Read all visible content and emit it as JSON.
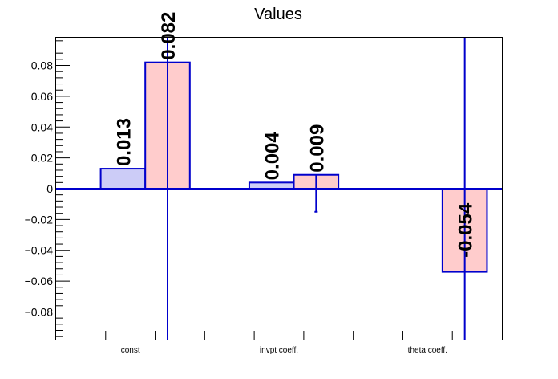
{
  "chart_data": {
    "type": "bar",
    "title": "Values",
    "categories": [
      "const",
      "invpt coeff.",
      "theta coeff."
    ],
    "ylim": [
      -0.098,
      0.098
    ],
    "yticks": [
      "0.08",
      "0.06",
      "0.04",
      "0.02",
      "0",
      "−0.02",
      "−0.04",
      "−0.06",
      "−0.08"
    ],
    "ytick_values": [
      0.08,
      0.06,
      0.04,
      0.02,
      0,
      -0.02,
      -0.04,
      -0.06,
      -0.08
    ],
    "grid": false,
    "series": [
      {
        "color_fill": "#ccccf7",
        "color_line": "#0000cc",
        "values": [
          0.013,
          0.004,
          null
        ],
        "labels": [
          "0.013",
          "0.004",
          ""
        ],
        "errors": [
          null,
          null,
          null
        ]
      },
      {
        "color_fill": "#ffcccc",
        "color_line": "#0000cc",
        "values": [
          0.082,
          0.009,
          -0.054
        ],
        "labels": [
          "0.082",
          "0.009",
          "-0.054"
        ],
        "errors": [
          [
            -0.098,
            0.098
          ],
          [
            -0.015,
            0.009
          ],
          [
            -0.098,
            0.098
          ]
        ]
      }
    ]
  }
}
